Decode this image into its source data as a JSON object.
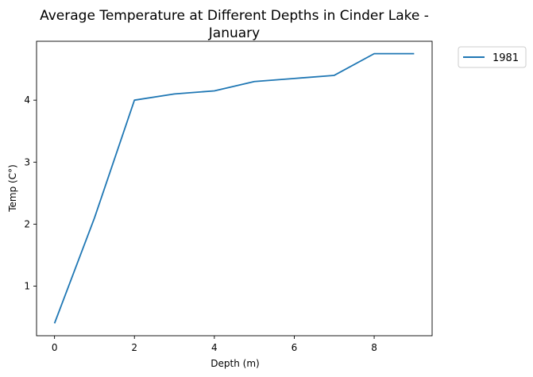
{
  "chart_data": {
    "type": "line",
    "title_line1": "Average Temperature at Different Depths in Cinder Lake -",
    "title_line2": "January",
    "xlabel": "Depth (m)",
    "ylabel": "Temp (C°)",
    "xlim": [
      -0.45,
      9.45
    ],
    "ylim": [
      0.2,
      4.95
    ],
    "xticks": [
      0,
      2,
      4,
      6,
      8
    ],
    "yticks": [
      1,
      2,
      3,
      4
    ],
    "grid": false,
    "legend_position": "outside-top-right",
    "x": [
      0,
      1,
      2,
      3,
      4,
      5,
      6,
      7,
      8,
      9
    ],
    "series": [
      {
        "name": "1981",
        "color": "#1f77b4",
        "values": [
          0.4,
          2.1,
          4.0,
          4.1,
          4.15,
          4.3,
          4.35,
          4.4,
          4.75,
          4.75
        ]
      }
    ]
  }
}
